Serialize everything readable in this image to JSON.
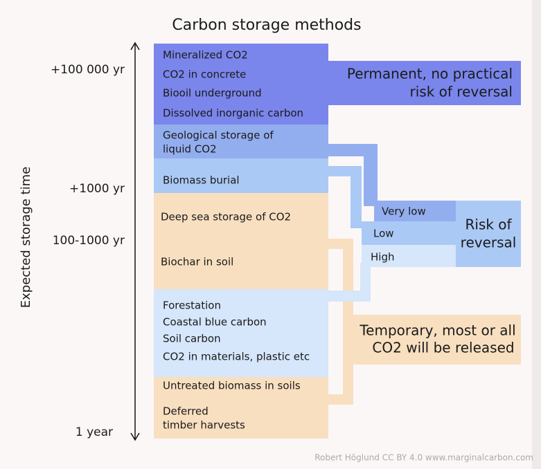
{
  "title": "Carbon storage methods",
  "axis": {
    "label": "Expected storage time",
    "ticks": [
      "+100 000 yr",
      "+1000 yr",
      "100-1000 yr",
      "1 year"
    ]
  },
  "boxes": [
    {
      "items": [
        "Mineralized CO2",
        "CO2 in concrete",
        "Biooil underground",
        "Dissolved inorganic carbon"
      ]
    },
    {
      "items": [
        "Geological storage of",
        "liquid CO2"
      ]
    },
    {
      "items": [
        "Biomass burial"
      ]
    },
    {
      "items": [
        "Deep sea storage of CO2",
        "Biochar in soil"
      ]
    },
    {
      "items": [
        "Forestation",
        "Coastal blue carbon",
        "Soil carbon",
        "CO2 in materials, plastic etc"
      ]
    },
    {
      "items": [
        "Untreated biomass in soils",
        "Deferred",
        "timber harvests"
      ]
    }
  ],
  "permanent": {
    "lines": [
      "Permanent, no practical",
      "risk of reversal"
    ]
  },
  "risk": {
    "lines": [
      "Risk of",
      "reversal"
    ],
    "levels": [
      "Very low",
      "Low",
      "High"
    ]
  },
  "temporary": {
    "lines": [
      "Temporary, most or all",
      "CO2 will be released"
    ]
  },
  "credit": "Robert Höglund CC BY 4.0  www.marginalcarbon.com"
}
